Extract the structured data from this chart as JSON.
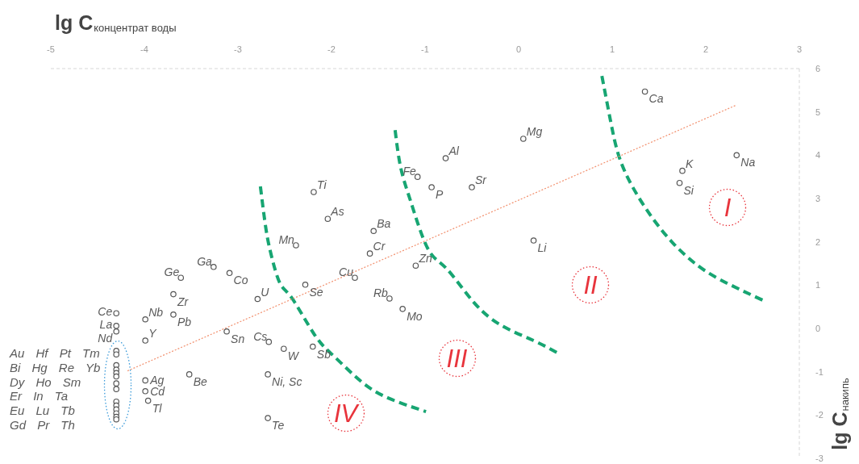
{
  "chart_data": {
    "type": "scatter",
    "xlabel": "lg C$_{концентрат воды}$",
    "ylabel": "lg C$_{накипь}$",
    "xlim": [
      -5,
      3
    ],
    "xticks": [
      -5,
      -4,
      -3,
      -2,
      -1,
      0,
      1,
      2,
      3
    ],
    "ylim": [
      -3,
      6
    ],
    "yticks": [
      -3,
      -2,
      -1,
      0,
      1,
      2,
      3,
      4,
      5,
      6
    ],
    "series": [
      {
        "type": "line",
        "color": "#17a572",
        "line_style": "dashed",
        "x": [
          -2.76,
          -2.7,
          -2.64,
          -2.55,
          -2.42,
          -2.18,
          -1.97,
          -1.68,
          -1.38,
          -0.99
        ],
        "values": [
          3.28,
          2.29,
          1.66,
          1.04,
          0.69,
          -0.15,
          -0.65,
          -1.23,
          -1.62,
          -1.92
        ]
      },
      {
        "type": "line",
        "color": "#17a572",
        "line_style": "dashed",
        "x": [
          -1.32,
          -1.26,
          -1.15,
          -0.97,
          -0.77,
          -0.47,
          -0.16,
          0.16,
          0.43
        ],
        "values": [
          4.58,
          3.71,
          2.91,
          1.84,
          1.38,
          0.58,
          0.04,
          -0.28,
          -0.58
        ]
      },
      {
        "type": "line",
        "color": "#17a572",
        "line_style": "dashed",
        "x": [
          0.89,
          0.98,
          1.07,
          1.22,
          1.43,
          1.65,
          1.88,
          2.16,
          2.61
        ],
        "values": [
          5.83,
          4.82,
          3.99,
          3.26,
          2.55,
          1.97,
          1.51,
          1.12,
          0.65
        ]
      },
      {
        "type": "line",
        "color": "#f2906e",
        "line_style": "dotted",
        "x": [
          -4.18,
          2.32
        ],
        "values": [
          -0.98,
          5.15
        ]
      },
      {
        "color": "#555555",
        "marker": "circle",
        "x": [
          1.35,
          0.05,
          -0.78,
          -1.08,
          -0.93,
          -0.5,
          1.75,
          1.72,
          2.33,
          0.16,
          -2.19,
          -2.04,
          -1.55,
          -1.59,
          -2.38,
          -1.1,
          -1.75,
          -2.28,
          -1.38,
          -1.24,
          -2.79,
          -3.09,
          -3.26,
          -3.61,
          -3.69,
          -3.69,
          -3.99,
          -3.99,
          -3.12,
          -2.67,
          -2.51,
          -2.2,
          -2.68,
          -2.68,
          -3.52,
          -3.99,
          -3.99,
          -3.96,
          -4.3,
          -4.3,
          -4.3,
          -4.3,
          -4.3,
          -4.3,
          -4.3,
          -4.3,
          -4.3,
          -4.3,
          -4.3,
          -4.3,
          -4.3,
          -4.3,
          -4.3,
          -4.3,
          -4.3
        ],
        "values": [
          5.47,
          4.38,
          3.93,
          3.5,
          3.26,
          3.26,
          3.64,
          3.36,
          4.0,
          2.03,
          3.15,
          2.53,
          2.25,
          1.73,
          1.92,
          1.45,
          1.17,
          1.01,
          0.69,
          0.45,
          0.68,
          1.28,
          1.42,
          1.17,
          0.79,
          0.32,
          0.21,
          -0.28,
          -0.07,
          -0.31,
          -0.47,
          -0.42,
          -1.06,
          -2.07,
          -1.06,
          -1.2,
          -1.45,
          -1.67,
          0.35,
          0.06,
          -0.07,
          -0.52,
          -0.6,
          -0.85,
          -0.95,
          -1.03,
          -1.11,
          -1.27,
          -1.4,
          -1.69,
          -1.78,
          -1.87,
          -1.96,
          -2.04,
          -2.1
        ],
        "value_labels": [
          "Ca",
          "Mg",
          "Al",
          "Fe",
          "P",
          "Sr",
          "K",
          "Si",
          "Na",
          "Li",
          "Ti",
          "As",
          "Ba",
          "Cr",
          "Mn",
          "Zn",
          "Cu",
          "Se",
          "Rb",
          "Mo",
          "U",
          "Co",
          "Ga",
          "Ge",
          "Zr",
          "Pb",
          "Nb",
          "Y",
          "Sn",
          "Cs",
          "W",
          "Sb",
          "Ni, Sc",
          "Te",
          "Be",
          "Ag",
          "Cd",
          "Tl",
          "Ce",
          "La",
          "Nd",
          null,
          null,
          null,
          null,
          null,
          null,
          null,
          null,
          null,
          null,
          null,
          null,
          null,
          null
        ]
      }
    ],
    "annotations": [
      "Au Hf Pt Tm",
      "Bi Hg Re Yb",
      "Dy Ho Sm",
      "Er In Ta",
      "Eu Lu Tb",
      "Gd Pr Th",
      "I",
      "II",
      "III",
      "IV"
    ]
  }
}
